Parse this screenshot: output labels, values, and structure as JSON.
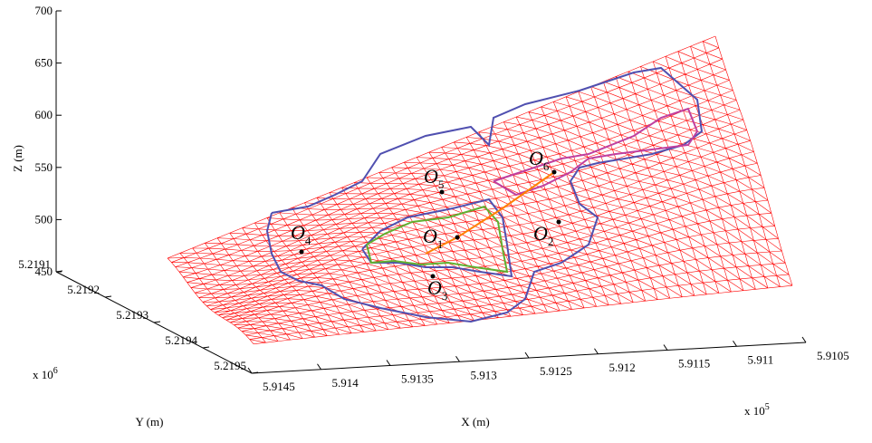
{
  "chart_data": {
    "type": "surface3d",
    "xlabel": "X (m)",
    "ylabel": "Y (m)",
    "zlabel": "Z (m)",
    "xticks": [
      5.9145,
      5.914,
      5.9135,
      5.913,
      5.9125,
      5.912,
      5.9115,
      5.911,
      5.9105
    ],
    "x_multiplier": {
      "base": "x 10",
      "power": "5"
    },
    "yticks": [
      5.2191,
      5.2192,
      5.2193,
      5.2194,
      5.2195
    ],
    "y_multiplier": {
      "base": "x 10",
      "power": "6"
    },
    "zticks": [
      450,
      500,
      550,
      600,
      650,
      700
    ],
    "zlim": [
      450,
      700
    ],
    "mesh_color": "#ff0000",
    "annotations": [
      {
        "label": "O",
        "sub": "1"
      },
      {
        "label": "O",
        "sub": "2"
      },
      {
        "label": "O",
        "sub": "3"
      },
      {
        "label": "O",
        "sub": "4"
      },
      {
        "label": "O",
        "sub": "5"
      },
      {
        "label": "O",
        "sub": "6"
      }
    ]
  }
}
